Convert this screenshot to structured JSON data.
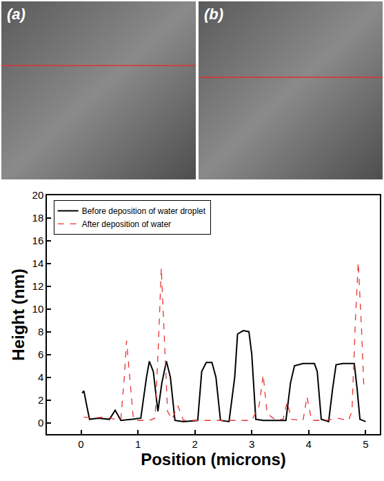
{
  "panels": [
    "(a)",
    "(b)"
  ],
  "chart_data": {
    "type": "line",
    "x_label": "Position (microns)",
    "y_label": "Height (nm)",
    "xlim": [
      -0.6,
      5.25
    ],
    "xticks": [
      0,
      1,
      2,
      3,
      4,
      5
    ],
    "ylim": [
      -1,
      20
    ],
    "yticks": [
      0,
      2,
      4,
      6,
      8,
      10,
      12,
      14,
      16,
      18,
      20
    ],
    "grid": false,
    "legend": "upper left",
    "series": [
      {
        "name": "Before deposition of water droplet",
        "color": "#000000",
        "line_style": "solid",
        "x": [
          0.02,
          0.05,
          0.1,
          0.15,
          0.3,
          0.5,
          0.6,
          0.7,
          0.9,
          1.05,
          1.15,
          1.2,
          1.27,
          1.35,
          1.42,
          1.5,
          1.57,
          1.65,
          1.8,
          2.05,
          2.12,
          2.2,
          2.3,
          2.37,
          2.45,
          2.6,
          2.7,
          2.75,
          2.85,
          2.95,
          3.0,
          3.07,
          3.2,
          3.6,
          3.68,
          3.75,
          3.9,
          4.1,
          4.15,
          4.22,
          4.35,
          4.42,
          4.48,
          4.6,
          4.8,
          4.85,
          4.9,
          5.0
        ],
        "values": [
          2.6,
          2.8,
          1.5,
          0.3,
          0.4,
          0.3,
          1.1,
          0.2,
          0.3,
          0.4,
          4.0,
          5.4,
          4.5,
          1.0,
          3.5,
          5.4,
          4.0,
          0.2,
          0.1,
          0.2,
          4.5,
          5.3,
          5.3,
          4.0,
          0.2,
          0.1,
          4.0,
          7.8,
          8.1,
          8.0,
          6.0,
          0.3,
          0.2,
          0.2,
          3.5,
          5.0,
          5.2,
          5.2,
          4.5,
          0.3,
          0.1,
          3.0,
          5.1,
          5.2,
          5.2,
          3.0,
          0.3,
          0.1
        ]
      },
      {
        "name": "After deposition of water",
        "color": "#e8322f",
        "line_style": "dash",
        "x": [
          0.05,
          0.2,
          0.4,
          0.6,
          0.7,
          0.76,
          0.8,
          0.85,
          0.92,
          1.0,
          1.2,
          1.3,
          1.36,
          1.41,
          1.46,
          1.52,
          1.6,
          1.7,
          1.8,
          2.0,
          2.5,
          3.0,
          3.13,
          3.2,
          3.27,
          3.4,
          3.55,
          3.62,
          3.7,
          3.9,
          3.97,
          4.05,
          4.3,
          4.5,
          4.7,
          4.76,
          4.82,
          4.87,
          4.93,
          4.97
        ],
        "values": [
          0.5,
          0.4,
          0.5,
          0.3,
          0.3,
          4.0,
          7.2,
          4.5,
          0.3,
          0.2,
          0.2,
          0.4,
          7.0,
          13.6,
          8.0,
          1.0,
          0.3,
          1.5,
          0.2,
          0.2,
          0.2,
          0.2,
          1.5,
          4.2,
          0.8,
          0.3,
          0.3,
          1.8,
          0.3,
          0.2,
          2.3,
          0.2,
          0.2,
          0.4,
          0.2,
          1.0,
          9.0,
          14.1,
          8.0,
          3.0
        ]
      }
    ]
  }
}
